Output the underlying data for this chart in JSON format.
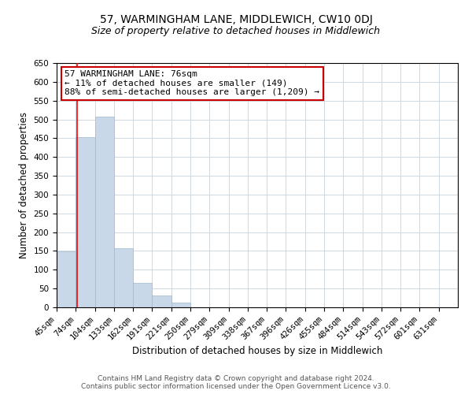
{
  "title": "57, WARMINGHAM LANE, MIDDLEWICH, CW10 0DJ",
  "subtitle": "Size of property relative to detached houses in Middlewich",
  "xlabel": "Distribution of detached houses by size in Middlewich",
  "ylabel": "Number of detached properties",
  "bar_labels": [
    "45sqm",
    "74sqm",
    "104sqm",
    "133sqm",
    "162sqm",
    "191sqm",
    "221sqm",
    "250sqm",
    "279sqm",
    "309sqm",
    "338sqm",
    "367sqm",
    "396sqm",
    "426sqm",
    "455sqm",
    "484sqm",
    "514sqm",
    "543sqm",
    "572sqm",
    "601sqm",
    "631sqm"
  ],
  "bar_heights": [
    148,
    452,
    508,
    158,
    65,
    32,
    12,
    1,
    0,
    0,
    0,
    1,
    0,
    0,
    0,
    0,
    1,
    0,
    0,
    0,
    1
  ],
  "bar_color": "#c8d8e8",
  "bar_edgecolor": "#a0b8cc",
  "ylim": [
    0,
    650
  ],
  "yticks": [
    0,
    50,
    100,
    150,
    200,
    250,
    300,
    350,
    400,
    450,
    500,
    550,
    600,
    650
  ],
  "red_line_x": 76,
  "bin_edges": [
    45,
    74,
    104,
    133,
    162,
    191,
    221,
    250,
    279,
    309,
    338,
    367,
    396,
    426,
    455,
    484,
    514,
    543,
    572,
    601,
    631,
    660
  ],
  "annotation_line1": "57 WARMINGHAM LANE: 76sqm",
  "annotation_line2": "← 11% of detached houses are smaller (149)",
  "annotation_line3": "88% of semi-detached houses are larger (1,209) →",
  "annotation_box_edgecolor": "#cc0000",
  "annotation_box_facecolor": "#ffffff",
  "footer_line1": "Contains HM Land Registry data © Crown copyright and database right 2024.",
  "footer_line2": "Contains public sector information licensed under the Open Government Licence v3.0.",
  "background_color": "#ffffff",
  "grid_color": "#d0d8e0",
  "title_fontsize": 10,
  "subtitle_fontsize": 9,
  "axis_label_fontsize": 8.5,
  "tick_fontsize": 7.5,
  "annotation_fontsize": 8,
  "footer_fontsize": 6.5
}
